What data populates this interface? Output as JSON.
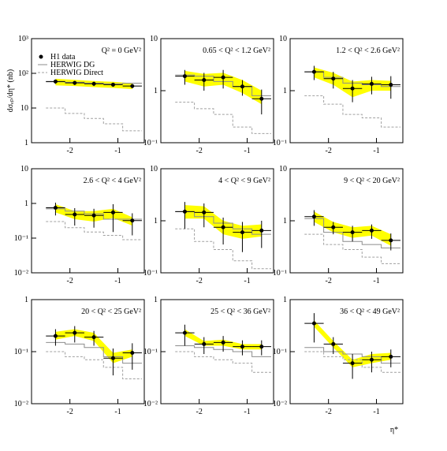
{
  "style": {
    "band_color": "#ffff00",
    "dg_color": "#8c8c8c",
    "direct_color": "#a0a0a0",
    "data_color": "#000000"
  },
  "chart_data": [
    {
      "type": "errorbar",
      "label": "Q² = 0 GeV²",
      "legend": [
        "H1 data",
        "HERWIG DG",
        "HERWIG Direct"
      ],
      "y_label": "dσₑₚ/dη* (nb)",
      "bins": [
        -2.5,
        -2.1,
        -1.7,
        -1.3,
        -0.9,
        -0.5
      ],
      "x": [
        -2.3,
        -1.9,
        -1.5,
        -1.1,
        -0.7
      ],
      "xlim": [
        -2.8,
        -0.45
      ],
      "xticks": [
        -2,
        -1
      ],
      "ylim": [
        1,
        1000
      ],
      "log": true,
      "yticks": [
        1,
        10,
        {
          "value": 100,
          "label": "10²"
        },
        {
          "value": 1000,
          "label": "10³"
        }
      ],
      "data": [
        58,
        53,
        50,
        47,
        43
      ],
      "err": [
        8,
        7,
        7,
        6,
        6
      ],
      "dg": [
        57,
        55,
        52,
        50,
        52
      ],
      "direct": [
        10,
        7,
        5,
        3.5,
        2.2
      ],
      "band_lo": [
        45,
        43,
        40,
        38,
        35
      ],
      "band_hi": [
        70,
        65,
        60,
        57,
        52
      ]
    },
    {
      "type": "errorbar",
      "label": "0.65 < Q² < 1.2 GeV²",
      "bins": [
        -2.5,
        -2.1,
        -1.7,
        -1.3,
        -0.9,
        -0.5
      ],
      "x": [
        -2.3,
        -1.9,
        -1.5,
        -1.1,
        -0.7
      ],
      "xlim": [
        -2.8,
        -0.45
      ],
      "xticks": [
        -2,
        -1
      ],
      "ylim": [
        0.1,
        10
      ],
      "log": true,
      "yticks": [
        {
          "value": 0.1,
          "label": "10⁻¹"
        },
        1,
        10
      ],
      "data": [
        1.9,
        1.6,
        1.8,
        1.2,
        0.7
      ],
      "err": [
        0.6,
        0.6,
        0.7,
        0.4,
        0.35
      ],
      "dg": [
        2.0,
        1.9,
        1.5,
        1.2,
        0.8
      ],
      "direct": [
        0.6,
        0.45,
        0.35,
        0.2,
        0.15
      ],
      "band_lo": [
        1.5,
        1.2,
        1.3,
        0.9,
        0.55
      ],
      "band_hi": [
        2.4,
        2.1,
        2.2,
        1.6,
        1.0
      ]
    },
    {
      "type": "errorbar",
      "label": "1.2 < Q² < 2.6 GeV²",
      "bins": [
        -2.5,
        -2.1,
        -1.7,
        -1.3,
        -0.9,
        -0.5
      ],
      "x": [
        -2.3,
        -1.9,
        -1.5,
        -1.1,
        -0.7
      ],
      "xlim": [
        -2.8,
        -0.45
      ],
      "xticks": [
        -2,
        -1
      ],
      "ylim": [
        0.1,
        10
      ],
      "log": true,
      "yticks": [
        {
          "value": 0.1,
          "label": "10⁻¹"
        },
        1,
        10
      ],
      "data": [
        2.3,
        1.7,
        1.1,
        1.35,
        1.3
      ],
      "err": [
        0.7,
        0.6,
        0.5,
        0.5,
        0.6
      ],
      "dg": [
        2.3,
        1.8,
        1.4,
        1.3,
        1.2
      ],
      "direct": [
        0.8,
        0.55,
        0.35,
        0.3,
        0.2
      ],
      "band_lo": [
        1.8,
        1.3,
        0.75,
        1.0,
        1.0
      ],
      "band_hi": [
        2.8,
        2.2,
        1.5,
        1.6,
        1.55
      ]
    },
    {
      "type": "errorbar",
      "label": "2.6 < Q² < 4 GeV²",
      "bins": [
        -2.5,
        -2.1,
        -1.7,
        -1.3,
        -0.9,
        -0.5
      ],
      "x": [
        -2.3,
        -1.9,
        -1.5,
        -1.1,
        -0.7
      ],
      "xlim": [
        -2.8,
        -0.45
      ],
      "xticks": [
        -2,
        -1
      ],
      "ylim": [
        0.01,
        10
      ],
      "log": true,
      "yticks": [
        {
          "value": 0.01,
          "label": "10⁻²"
        },
        {
          "value": 0.1,
          "label": "10⁻¹"
        },
        1,
        10
      ],
      "data": [
        0.75,
        0.48,
        0.45,
        0.55,
        0.32
      ],
      "err": [
        0.3,
        0.25,
        0.25,
        0.4,
        0.2
      ],
      "dg": [
        0.7,
        0.6,
        0.5,
        0.35,
        0.35
      ],
      "direct": [
        0.3,
        0.2,
        0.15,
        0.12,
        0.09
      ],
      "band_lo": [
        0.55,
        0.35,
        0.3,
        0.38,
        0.23
      ],
      "band_hi": [
        0.95,
        0.6,
        0.6,
        0.7,
        0.4
      ]
    },
    {
      "type": "errorbar",
      "label": "4 < Q² < 9 GeV²",
      "bins": [
        -2.5,
        -2.1,
        -1.7,
        -1.3,
        -0.9,
        -0.5
      ],
      "x": [
        -2.3,
        -1.9,
        -1.5,
        -1.1,
        -0.7
      ],
      "xlim": [
        -2.8,
        -0.45
      ],
      "xticks": [
        -2,
        -1
      ],
      "ylim": [
        0.1,
        10
      ],
      "log": true,
      "yticks": [
        {
          "value": 0.1,
          "label": "10⁻¹"
        },
        1,
        10
      ],
      "data": [
        1.5,
        1.45,
        0.75,
        0.6,
        0.65
      ],
      "err": [
        0.8,
        0.7,
        0.4,
        0.35,
        0.35
      ],
      "dg": [
        1.5,
        1.2,
        0.9,
        0.7,
        0.55
      ],
      "direct": [
        0.7,
        0.4,
        0.28,
        0.17,
        0.12
      ],
      "band_lo": [
        1.1,
        1.1,
        0.55,
        0.45,
        0.5
      ],
      "band_hi": [
        2.0,
        1.9,
        1.0,
        0.8,
        0.85
      ]
    },
    {
      "type": "errorbar",
      "label": "9 < Q² < 20 GeV²",
      "bins": [
        -2.5,
        -2.1,
        -1.7,
        -1.3,
        -0.9,
        -0.5
      ],
      "x": [
        -2.3,
        -1.9,
        -1.5,
        -1.1,
        -0.7
      ],
      "xlim": [
        -2.8,
        -0.45
      ],
      "xticks": [
        -2,
        -1
      ],
      "ylim": [
        0.1,
        10
      ],
      "log": true,
      "yticks": [
        {
          "value": 0.1,
          "label": "10⁻¹"
        },
        1,
        10
      ],
      "data": [
        1.2,
        0.75,
        0.6,
        0.65,
        0.42
      ],
      "err": [
        0.4,
        0.2,
        0.2,
        0.2,
        0.15
      ],
      "dg": [
        1.1,
        0.6,
        0.4,
        0.35,
        0.3
      ],
      "direct": [
        0.55,
        0.35,
        0.28,
        0.2,
        0.15
      ],
      "band_lo": [
        0.95,
        0.6,
        0.47,
        0.52,
        0.33
      ],
      "band_hi": [
        1.5,
        0.95,
        0.75,
        0.8,
        0.55
      ]
    },
    {
      "type": "errorbar",
      "label": "20 < Q² < 25 GeV²",
      "bins": [
        -2.5,
        -2.1,
        -1.7,
        -1.3,
        -0.9,
        -0.5
      ],
      "x": [
        -2.3,
        -1.9,
        -1.5,
        -1.1,
        -0.7
      ],
      "xlim": [
        -2.8,
        -0.45
      ],
      "xticks": [
        -2,
        -1
      ],
      "ylim": [
        0.01,
        1
      ],
      "log": true,
      "yticks": [
        {
          "value": 0.01,
          "label": "10⁻²"
        },
        {
          "value": 0.1,
          "label": "10⁻¹"
        },
        1
      ],
      "data": [
        0.2,
        0.23,
        0.19,
        0.075,
        0.095
      ],
      "err": [
        0.07,
        0.08,
        0.06,
        0.04,
        0.05
      ],
      "dg": [
        0.15,
        0.14,
        0.12,
        0.08,
        0.06
      ],
      "direct": [
        0.1,
        0.08,
        0.07,
        0.05,
        0.03
      ],
      "band_lo": [
        0.17,
        0.2,
        0.16,
        0.06,
        0.08
      ],
      "band_hi": [
        0.24,
        0.27,
        0.23,
        0.095,
        0.11
      ]
    },
    {
      "type": "errorbar",
      "label": "25 < Q² < 36 GeV²",
      "bins": [
        -2.5,
        -2.1,
        -1.7,
        -1.3,
        -0.9,
        -0.5
      ],
      "x": [
        -2.3,
        -1.9,
        -1.5,
        -1.1,
        -0.7
      ],
      "xlim": [
        -2.8,
        -0.45
      ],
      "xticks": [
        -2,
        -1
      ],
      "ylim": [
        0.01,
        1
      ],
      "log": true,
      "yticks": [
        {
          "value": 0.01,
          "label": "10⁻²"
        },
        {
          "value": 0.1,
          "label": "10⁻¹"
        },
        1
      ],
      "data": [
        0.23,
        0.14,
        0.15,
        0.125,
        0.125
      ],
      "err": [
        0.1,
        0.05,
        0.05,
        0.04,
        0.04
      ],
      "dg": [
        0.13,
        0.12,
        0.11,
        0.1,
        0.08
      ],
      "direct": [
        0.1,
        0.08,
        0.07,
        0.06,
        0.04
      ],
      "band_lo": [
        0.2,
        0.13,
        0.13,
        0.11,
        0.11
      ],
      "band_hi": [
        0.27,
        0.16,
        0.17,
        0.14,
        0.14
      ]
    },
    {
      "type": "errorbar",
      "label": "36 < Q² < 49 GeV²",
      "x_label": "η*",
      "bins": [
        -2.5,
        -2.1,
        -1.7,
        -1.3,
        -0.9,
        -0.5
      ],
      "x": [
        -2.3,
        -1.9,
        -1.5,
        -1.1,
        -0.7
      ],
      "xlim": [
        -2.8,
        -0.45
      ],
      "xticks": [
        -2,
        -1
      ],
      "ylim": [
        0.01,
        1
      ],
      "log": true,
      "yticks": [
        {
          "value": 0.01,
          "label": "10⁻²"
        },
        {
          "value": 0.1,
          "label": "10⁻¹"
        },
        1
      ],
      "data": [
        0.35,
        0.14,
        0.06,
        0.07,
        0.08
      ],
      "err": [
        0.2,
        0.05,
        0.03,
        0.03,
        0.03
      ],
      "dg": [
        0.12,
        0.1,
        0.09,
        0.08,
        0.06
      ],
      "direct": [
        0.1,
        0.08,
        0.07,
        0.05,
        0.04
      ],
      "band_lo": [
        0.3,
        0.12,
        0.05,
        0.06,
        0.07
      ],
      "band_hi": [
        0.4,
        0.16,
        0.07,
        0.09,
        0.095
      ]
    }
  ]
}
